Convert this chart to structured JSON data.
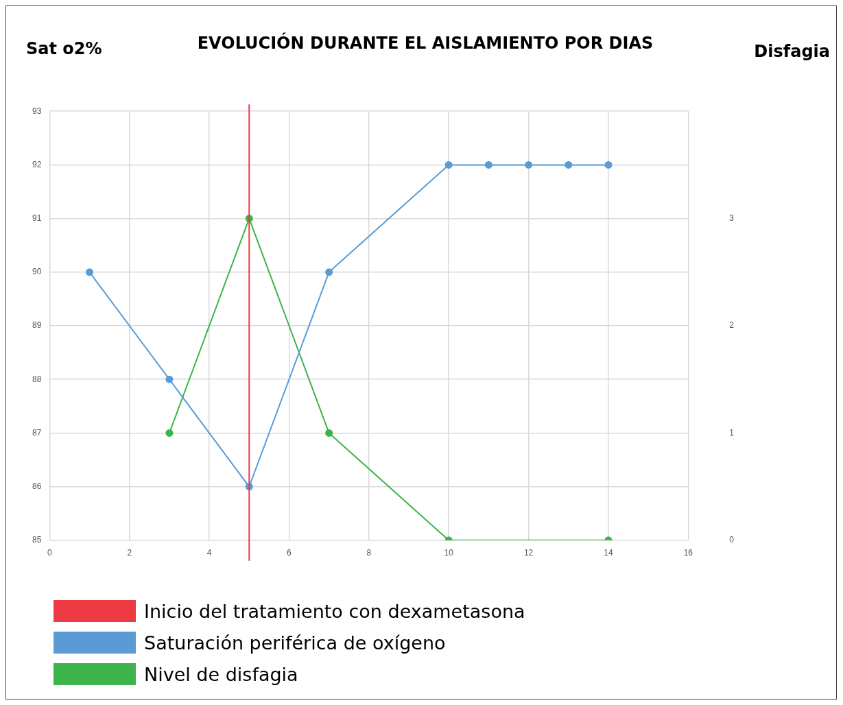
{
  "chart_data": {
    "type": "line",
    "title": "EVOLUCIÓN DURANTE EL AISLAMIENTO  POR DIAS",
    "ylabel": "Sat o2%",
    "y2label": "Disfagia",
    "x": [
      1,
      3,
      5,
      7,
      10,
      11,
      12,
      13,
      14
    ],
    "series": [
      {
        "name": "Saturación periférica de oxígeno",
        "color": "#5b9bd5",
        "values": [
          90,
          88,
          86,
          90,
          92,
          92,
          92,
          92,
          92
        ]
      },
      {
        "name": "Nivel de disfagia",
        "color": "#3cb44b",
        "axis": "y2",
        "x": [
          3,
          5,
          7,
          10,
          14
        ],
        "values": [
          1,
          3,
          1,
          0,
          0
        ]
      }
    ],
    "xlim": [
      0,
      16
    ],
    "xticks": [
      0,
      2,
      4,
      6,
      8,
      10,
      12,
      14,
      16
    ],
    "ylim": [
      85,
      93
    ],
    "yticks": [
      85,
      86,
      87,
      88,
      89,
      90,
      91,
      92,
      93
    ],
    "y2lim": [
      0,
      4
    ],
    "y2ticks": [
      0,
      1,
      2,
      3
    ],
    "ref_lines": [
      {
        "axis": "x",
        "value": 5,
        "label": "Inicio del tratamiento con dexametasona",
        "color": "#ee3a43"
      }
    ],
    "grid": true,
    "legend": "bottom",
    "marker": "circle",
    "line_style": "solid"
  }
}
